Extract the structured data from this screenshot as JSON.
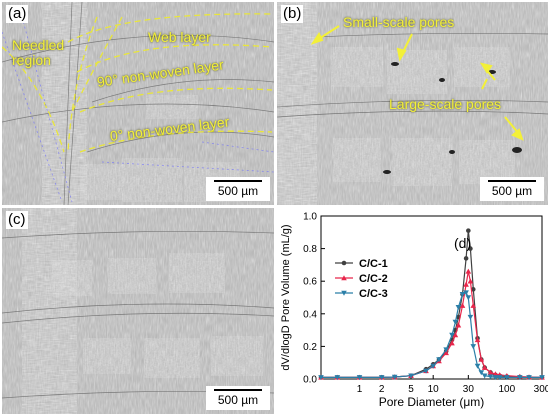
{
  "panels": {
    "a": {
      "label": "(a)",
      "scale": "500 µm",
      "annotations": {
        "needled": "Needled\nregion",
        "web": "Web layer",
        "ninety": "90° non-woven layer",
        "zero": "0° non-woven layer"
      }
    },
    "b": {
      "label": "(b)",
      "scale": "500 µm",
      "annotations": {
        "small": "Small-scale pores",
        "large": "Large-scale pores"
      }
    },
    "c": {
      "label": "(c)",
      "scale": "500 µm"
    },
    "d": {
      "label": "(d)"
    }
  },
  "colors": {
    "annotation": "#f3f038",
    "sem_bg": "#b9b9b9",
    "c1": "#404040",
    "c2": "#e8264b",
    "c3": "#2b7fa8"
  },
  "chart_data": {
    "type": "line",
    "xlabel": "Pore Diameter (μm)",
    "ylabel": "dV/dlogD Pore Volume (mL/g)",
    "xscale": "log",
    "xlim": [
      0.3,
      300
    ],
    "ylim": [
      0,
      1.0
    ],
    "xticks": [
      1,
      2,
      5,
      10,
      30,
      100,
      300
    ],
    "yticks": [
      0.0,
      0.2,
      0.4,
      0.6,
      0.8,
      1.0
    ],
    "ytick_labels": [
      "0.0",
      "0.2",
      "0.4",
      "0.6",
      "0.8",
      "1.0"
    ],
    "legend_position": "top-left",
    "series": [
      {
        "name": "C/C-1",
        "color": "#404040",
        "marker": "circle",
        "x": [
          0.3,
          0.5,
          1,
          2,
          3,
          5,
          8,
          10,
          12,
          15,
          18,
          20,
          22,
          25,
          28,
          30,
          32,
          35,
          40,
          45,
          50,
          60,
          70,
          80,
          100,
          150,
          200,
          300
        ],
        "y": [
          0.01,
          0.01,
          0.01,
          0.01,
          0.012,
          0.02,
          0.06,
          0.09,
          0.12,
          0.17,
          0.24,
          0.3,
          0.38,
          0.52,
          0.74,
          0.91,
          0.8,
          0.55,
          0.25,
          0.12,
          0.07,
          0.04,
          0.025,
          0.02,
          0.015,
          0.012,
          0.01,
          0.01
        ]
      },
      {
        "name": "C/C-2",
        "color": "#e8264b",
        "marker": "triangle",
        "x": [
          0.3,
          0.5,
          1,
          2,
          3,
          5,
          8,
          10,
          12,
          15,
          18,
          20,
          22,
          25,
          28,
          30,
          32,
          35,
          40,
          45,
          50,
          60,
          70,
          80,
          100,
          150,
          200,
          300
        ],
        "y": [
          0.01,
          0.01,
          0.01,
          0.01,
          0.012,
          0.02,
          0.05,
          0.08,
          0.11,
          0.16,
          0.22,
          0.27,
          0.33,
          0.45,
          0.58,
          0.66,
          0.6,
          0.45,
          0.24,
          0.12,
          0.07,
          0.04,
          0.03,
          0.025,
          0.02,
          0.015,
          0.012,
          0.01
        ]
      },
      {
        "name": "C/C-3",
        "color": "#2b7fa8",
        "marker": "triangle-down",
        "x": [
          0.3,
          0.5,
          1,
          2,
          3,
          5,
          8,
          10,
          12,
          15,
          18,
          20,
          22,
          25,
          28,
          30,
          32,
          35,
          40,
          45,
          50,
          60,
          70,
          80,
          100,
          150,
          200,
          300
        ],
        "y": [
          0.01,
          0.01,
          0.01,
          0.01,
          0.012,
          0.02,
          0.05,
          0.08,
          0.12,
          0.18,
          0.27,
          0.35,
          0.44,
          0.52,
          0.53,
          0.5,
          0.38,
          0.2,
          0.08,
          0.04,
          0.02,
          0.015,
          0.01,
          0.01,
          0.01,
          0.01,
          0.01,
          0.01
        ]
      }
    ]
  }
}
